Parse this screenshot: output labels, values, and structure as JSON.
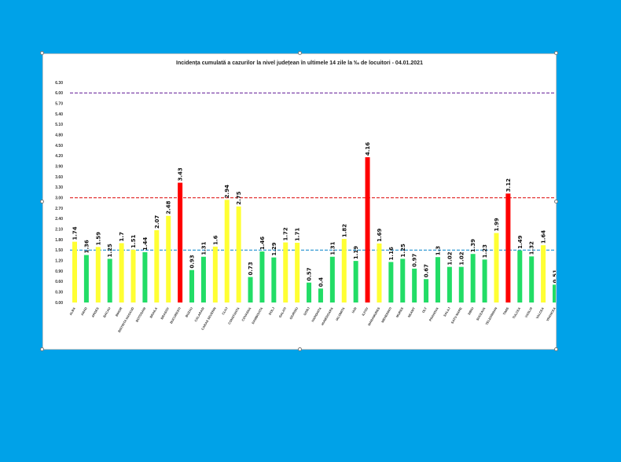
{
  "colors": {
    "background": "#00a2e8",
    "bar_high": "#ff0000",
    "bar_mid": "#ffff33",
    "bar_low": "#22dd66",
    "line_6": "#7030a0",
    "line_3": "#e02020",
    "line_15": "#1e90d0"
  },
  "chart_data": {
    "type": "bar",
    "title": "Incidența cumulată a cazurilor la nivel județean în ultimele 14 zile la ‰ de locuitori - 04.01.2021",
    "xlabel": "",
    "ylabel": "",
    "ylim": [
      0,
      6.3
    ],
    "yticks": [
      "0.00",
      "0.30",
      "0.60",
      "0.90",
      "1.20",
      "1.50",
      "1.80",
      "2.10",
      "2.40",
      "2.70",
      "3.00",
      "3.30",
      "3.60",
      "3.90",
      "4.20",
      "4.50",
      "4.80",
      "5.10",
      "5.40",
      "5.70",
      "6.00",
      "6.30"
    ],
    "reference_lines": [
      {
        "value": 6.0,
        "color": "#7030a0",
        "style": "dashed"
      },
      {
        "value": 3.0,
        "color": "#e02020",
        "style": "dashed"
      },
      {
        "value": 1.5,
        "color": "#1e90d0",
        "style": "dashed"
      }
    ],
    "categories": [
      "ALBA",
      "ARAD",
      "ARGES",
      "BACAU",
      "BIHOR",
      "BISTRITA NASAUD",
      "BOTOSANI",
      "BRAILA",
      "BRASOV",
      "BUCURESTI",
      "BUZAU",
      "CALARASI",
      "CARAS SEVERIN",
      "CLUJ",
      "CONSTANTA",
      "COVASNA",
      "DAMBOVITA",
      "DOLJ",
      "GALATI",
      "GIURGIU",
      "GORJ",
      "HARGHITA",
      "HUNEDOARA",
      "IALOMITA",
      "IASI",
      "ILFOV",
      "MARAMURES",
      "MEHEDINTI",
      "MURES",
      "NEAMT",
      "OLT",
      "PRAHOVA",
      "SALAJ",
      "SATU MARE",
      "SIBIU",
      "SUCEAVA",
      "TELEORMAN",
      "TIMIS",
      "TULCEA",
      "VASLUI",
      "VALCEA",
      "VRANCEA"
    ],
    "values": [
      1.74,
      1.36,
      1.59,
      1.25,
      1.7,
      1.51,
      1.44,
      2.07,
      2.48,
      3.43,
      0.93,
      1.31,
      1.6,
      2.94,
      2.75,
      0.73,
      1.46,
      1.29,
      1.72,
      1.71,
      0.57,
      0.4,
      1.31,
      1.82,
      1.19,
      4.16,
      1.69,
      1.16,
      1.25,
      0.97,
      0.67,
      1.3,
      1.02,
      1.02,
      1.39,
      1.23,
      1.99,
      3.12,
      1.49,
      1.32,
      1.64,
      0.51
    ],
    "value_labels": [
      "1.74",
      "1.36",
      "1.59",
      "1.25",
      "1.7",
      "1.51",
      "1.44",
      "2.07",
      "2.48",
      "3.43",
      "0.93",
      "1.31",
      "1.6",
      "2.94",
      "2.75",
      "0.73",
      "1.46",
      "1.29",
      "1.72",
      "1.71",
      "0.57",
      "0.4",
      "1.31",
      "1.82",
      "1.19",
      "4.16",
      "1.69",
      "1.16",
      "1.25",
      "0.97",
      "0.67",
      "1.3",
      "1.02",
      "1.02",
      "1.39",
      "1.23",
      "1.99",
      "3.12",
      "1.49",
      "1.32",
      "1.64",
      "0.51"
    ],
    "grid": false,
    "legend": "none"
  }
}
